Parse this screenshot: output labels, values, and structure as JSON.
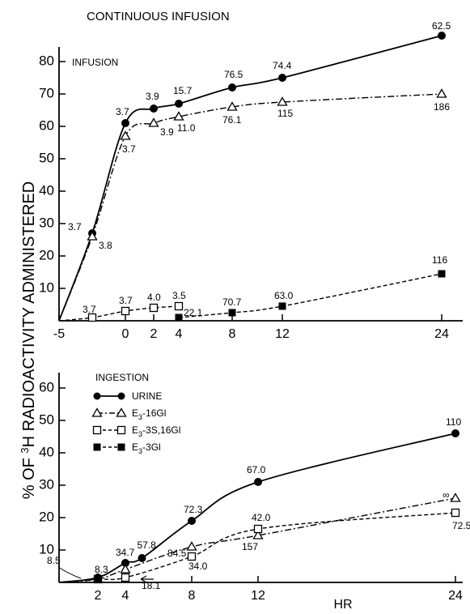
{
  "chart_data": [
    {
      "type": "line",
      "title": "CONTINUOUS INFUSION",
      "panel_label": "INFUSION",
      "ylabel": "% OF ³H RADIOACTIVITY ADMINISTERED",
      "ylabel_parts": {
        "pre": "% OF ",
        "sup": "3",
        "post": "H RADIOACTIVITY ADMINISTERED"
      },
      "xlabel": "",
      "x_ticks": [
        -5,
        0,
        2,
        4,
        8,
        12,
        24
      ],
      "y_ticks": [
        10,
        20,
        30,
        40,
        50,
        60,
        70,
        80
      ],
      "ylim": [
        0,
        85
      ],
      "grid": false,
      "series": [
        {
          "key": "urine",
          "style": "solid",
          "marker": "filled-circle",
          "x": [
            -2.5,
            0,
            2,
            4,
            8,
            12,
            24
          ],
          "y": [
            27,
            61,
            65.5,
            67,
            72,
            75,
            88
          ],
          "labels": [
            "3.7",
            "3.7",
            "3.9",
            "15.7",
            "76.5",
            "74.4",
            "62.5"
          ]
        },
        {
          "key": "e3_16gl",
          "style": "dash-dot",
          "marker": "open-triangle",
          "x": [
            -2.5,
            0,
            2,
            4,
            8,
            12,
            24
          ],
          "y": [
            26,
            57,
            61,
            63,
            66,
            67.5,
            70
          ],
          "labels": [
            "3.8",
            "3.7",
            "3.9",
            "11.0",
            "76.1",
            "115",
            "186"
          ]
        },
        {
          "key": "e3_3s16gl",
          "style": "dashed",
          "marker": "open-square",
          "x": [
            -2.5,
            0,
            2,
            4
          ],
          "y": [
            1,
            3,
            4,
            4.5
          ],
          "labels": [
            "3.7",
            "3.7",
            "4.0",
            "3.5"
          ]
        },
        {
          "key": "e3_3gl",
          "style": "dashed",
          "marker": "filled-square",
          "x": [
            4,
            8,
            12,
            24
          ],
          "y": [
            1,
            2.5,
            4.5,
            14.5
          ],
          "labels": [
            "22.1",
            "70.7",
            "63.0",
            "116"
          ]
        }
      ]
    },
    {
      "type": "line",
      "panel_label": "INGESTION",
      "xlabel": "HR",
      "x_ticks": [
        2,
        4,
        8,
        12,
        24
      ],
      "y_ticks": [
        10,
        20,
        30,
        40,
        50,
        60
      ],
      "ylim": [
        0,
        65
      ],
      "grid": false,
      "legend": {
        "position": "top-left",
        "entries": [
          {
            "key": "urine",
            "label": "URINE"
          },
          {
            "key": "e3_16gl",
            "label": "E3-16Gl",
            "parts": {
              "a": "E",
              "sub": "3",
              "b": "-16Gl"
            }
          },
          {
            "key": "e3_3s16gl",
            "label": "E3-3S,16Gl",
            "parts": {
              "a": "E",
              "sub": "3",
              "b": "-3S,16Gl"
            }
          },
          {
            "key": "e3_3gl",
            "label": "E3-3Gl",
            "parts": {
              "a": "E",
              "sub": "3",
              "b": "-3Gl"
            }
          }
        ]
      },
      "series": [
        {
          "key": "urine",
          "style": "solid",
          "marker": "filled-circle",
          "x": [
            2,
            4,
            5,
            8,
            12,
            24
          ],
          "y": [
            1.5,
            6,
            7.5,
            19,
            31,
            46
          ],
          "labels": [
            "8.3",
            "34.7",
            "57.8",
            "72.3",
            "67.0",
            "110"
          ]
        },
        {
          "key": "e3_16gl",
          "style": "dash-dot",
          "marker": "open-triangle",
          "x": [
            2,
            4,
            8,
            12,
            24
          ],
          "y": [
            1,
            4,
            11,
            14.5,
            26
          ],
          "labels": [
            "",
            "",
            "84.5",
            "157",
            "∞"
          ]
        },
        {
          "key": "e3_3s16gl",
          "style": "dashed",
          "marker": "open-square",
          "x": [
            2,
            4,
            8,
            12,
            24
          ],
          "y": [
            1,
            1.5,
            8,
            16.5,
            21.5
          ],
          "labels": [
            "",
            "18.1",
            "34.0",
            "42.0",
            "72.5"
          ]
        },
        {
          "key": "e3_3gl",
          "style": "dashed",
          "marker": "filled-square",
          "x": [
            2
          ],
          "y": [
            1
          ],
          "labels": [
            ""
          ]
        }
      ],
      "annotations": [
        "8.5"
      ]
    }
  ]
}
